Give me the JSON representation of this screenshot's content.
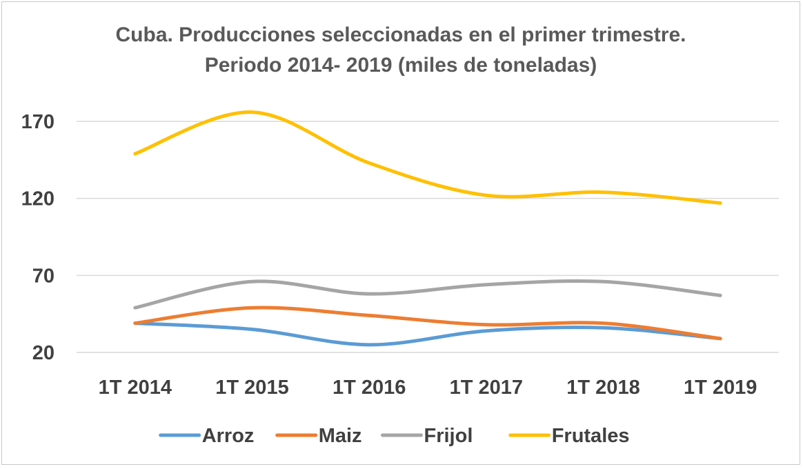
{
  "chart_data": {
    "type": "line",
    "title_line1": "Cuba. Producciones seleccionadas en el primer trimestre.",
    "title_line2": "Periodo 2014- 2019 (miles de toneladas)",
    "categories": [
      "1T 2014",
      "1T 2015",
      "1T 2016",
      "1T 2017",
      "1T 2018",
      "1T 2019"
    ],
    "ylim": [
      20,
      170
    ],
    "yticks": [
      20,
      70,
      120,
      170
    ],
    "grid": true,
    "legend_position": "bottom",
    "series": [
      {
        "name": "Arroz",
        "color": "#5b9bd5",
        "values": [
          39,
          35,
          25,
          34,
          36,
          29
        ]
      },
      {
        "name": "Maiz",
        "color": "#ed7d31",
        "values": [
          39,
          49,
          44,
          38,
          39,
          29
        ]
      },
      {
        "name": "Frijol",
        "color": "#a5a5a5",
        "values": [
          49,
          66,
          58,
          64,
          66,
          57
        ]
      },
      {
        "name": "Frutales",
        "color": "#ffc000",
        "values": [
          149,
          176,
          143,
          122,
          124,
          117
        ]
      }
    ]
  }
}
